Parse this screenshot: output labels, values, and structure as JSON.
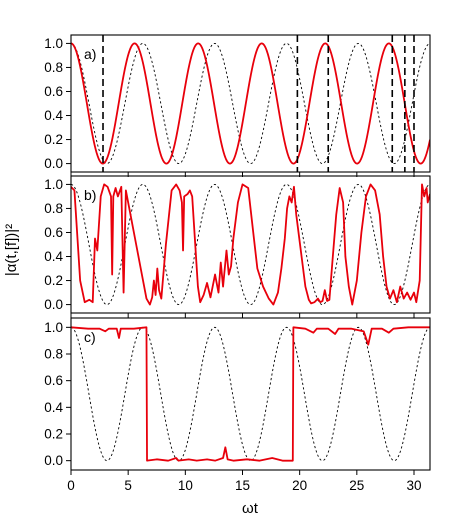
{
  "chart_data": {
    "type": "line",
    "xlabel": "ωt",
    "ylabel": "|α(t,[f])|²",
    "xlim": [
      0,
      31.4
    ],
    "ylim": [
      -0.07,
      1.07
    ],
    "x_ticks": [
      "0",
      "5",
      "10",
      "15",
      "20",
      "25",
      "30"
    ],
    "y_ticks": [
      "0.0",
      "0.2",
      "0.4",
      "0.6",
      "0.8",
      "1.0"
    ],
    "grid": false,
    "colors": {
      "red_series": "#e8000b",
      "dotted_series": "#000000"
    },
    "panels": [
      {
        "label": "a)",
        "series": [
          {
            "style": "dotted-black",
            "function": "cos^2(ωt/2)",
            "frequency": 1.0
          },
          {
            "style": "solid-red",
            "function": "cos^2(1.13·ωt/2)",
            "frequency": 1.13
          }
        ],
        "vertical_dashed_lines_x": [
          2.8,
          19.8,
          22.5,
          28.1,
          29.2,
          30.0
        ]
      },
      {
        "label": "b)",
        "series": [
          {
            "style": "dotted-black",
            "function": "cos^2(ωt/2)"
          },
          {
            "style": "solid-red",
            "points": [
              [
                0,
                0.98
              ],
              [
                0.3,
                0.95
              ],
              [
                0.8,
                0.2
              ],
              [
                1.2,
                0.02
              ],
              [
                1.6,
                0.04
              ],
              [
                1.9,
                0.02
              ],
              [
                2.1,
                0.55
              ],
              [
                2.3,
                0.45
              ],
              [
                2.6,
                0.9
              ],
              [
                2.9,
                1.0
              ],
              [
                3.2,
                0.98
              ],
              [
                3.5,
                0.9
              ],
              [
                3.6,
                0.25
              ],
              [
                3.7,
                0.9
              ],
              [
                3.9,
                0.97
              ],
              [
                4.1,
                0.9
              ],
              [
                4.4,
                0.98
              ],
              [
                4.6,
                0.1
              ],
              [
                4.8,
                0.95
              ],
              [
                5.2,
                0.75
              ],
              [
                5.7,
                0.5
              ],
              [
                6.2,
                0.25
              ],
              [
                6.6,
                0.05
              ],
              [
                6.9,
                0.0
              ],
              [
                7.1,
                0.06
              ],
              [
                7.25,
                0.2
              ],
              [
                7.4,
                0.08
              ],
              [
                7.55,
                0.3
              ],
              [
                7.7,
                0.12
              ],
              [
                7.9,
                0.05
              ],
              [
                8.3,
                0.5
              ],
              [
                8.8,
                0.95
              ],
              [
                9.2,
                1.0
              ],
              [
                9.5,
                0.95
              ],
              [
                9.7,
                0.85
              ],
              [
                9.8,
                0.45
              ],
              [
                9.9,
                0.9
              ],
              [
                10.2,
                0.92
              ],
              [
                10.4,
                0.95
              ],
              [
                10.6,
                0.9
              ],
              [
                10.9,
                0.45
              ],
              [
                11.1,
                0.15
              ],
              [
                11.3,
                0.02
              ],
              [
                11.6,
                0.08
              ],
              [
                11.9,
                0.18
              ],
              [
                12.2,
                0.06
              ],
              [
                12.6,
                0.25
              ],
              [
                12.9,
                0.1
              ],
              [
                13.1,
                0.35
              ],
              [
                13.3,
                0.15
              ],
              [
                13.6,
                0.45
              ],
              [
                13.8,
                0.25
              ],
              [
                14.0,
                0.32
              ],
              [
                14.2,
                0.55
              ],
              [
                14.6,
                0.85
              ],
              [
                15.0,
                1.0
              ],
              [
                15.5,
                0.97
              ],
              [
                16.0,
                0.55
              ],
              [
                16.3,
                0.3
              ],
              [
                16.8,
                0.15
              ],
              [
                17.3,
                0.05
              ],
              [
                17.7,
                0.0
              ],
              [
                18.1,
                0.1
              ],
              [
                18.4,
                0.3
              ],
              [
                18.7,
                0.55
              ],
              [
                18.9,
                0.8
              ],
              [
                19.1,
                0.9
              ],
              [
                19.3,
                0.85
              ],
              [
                19.5,
                0.98
              ],
              [
                19.7,
                0.75
              ],
              [
                20.1,
                0.45
              ],
              [
                20.5,
                0.15
              ],
              [
                20.8,
                0.04
              ],
              [
                21.0,
                0.01
              ],
              [
                21.3,
                0.02
              ],
              [
                21.6,
                0.05
              ],
              [
                21.8,
                0.02
              ],
              [
                22.0,
                0.03
              ],
              [
                22.2,
                0.12
              ],
              [
                22.4,
                0.03
              ],
              [
                22.6,
                0.04
              ],
              [
                22.9,
                0.4
              ],
              [
                23.2,
                0.75
              ],
              [
                23.5,
                0.97
              ],
              [
                23.8,
                0.85
              ],
              [
                24.0,
                0.4
              ],
              [
                24.3,
                0.15
              ],
              [
                24.6,
                0.0
              ],
              [
                25.0,
                0.2
              ],
              [
                25.4,
                0.6
              ],
              [
                25.8,
                0.9
              ],
              [
                26.2,
                1.0
              ],
              [
                26.6,
                0.95
              ],
              [
                27.0,
                0.75
              ],
              [
                27.3,
                0.4
              ],
              [
                27.6,
                0.15
              ],
              [
                27.9,
                0.05
              ],
              [
                28.2,
                0.12
              ],
              [
                28.5,
                0.02
              ],
              [
                28.8,
                0.15
              ],
              [
                29.1,
                0.05
              ],
              [
                29.4,
                0.1
              ],
              [
                29.7,
                0.04
              ],
              [
                30.0,
                0.1
              ],
              [
                30.2,
                0.02
              ],
              [
                30.5,
                0.2
              ],
              [
                30.7,
                1.0
              ],
              [
                30.9,
                0.9
              ],
              [
                31.1,
                0.97
              ],
              [
                31.2,
                0.85
              ],
              [
                31.4,
                0.92
              ]
            ]
          }
        ]
      },
      {
        "label": "c)",
        "series": [
          {
            "style": "dotted-black",
            "function": "cos^2(ωt/2)"
          },
          {
            "style": "solid-red",
            "points": [
              [
                0,
                1.0
              ],
              [
                1.5,
                0.99
              ],
              [
                2.5,
                0.99
              ],
              [
                3.0,
                0.97
              ],
              [
                3.3,
                0.99
              ],
              [
                4.0,
                0.99
              ],
              [
                4.2,
                0.92
              ],
              [
                4.35,
                0.99
              ],
              [
                5.5,
                0.99
              ],
              [
                6.6,
                1.0
              ],
              [
                6.65,
                0.0
              ],
              [
                7.5,
                0.01
              ],
              [
                8.5,
                0.0
              ],
              [
                9.2,
                0.02
              ],
              [
                9.4,
                0.0
              ],
              [
                10.3,
                0.01
              ],
              [
                11.0,
                0.0
              ],
              [
                11.9,
                0.01
              ],
              [
                12.6,
                0.0
              ],
              [
                13.3,
                0.02
              ],
              [
                13.5,
                0.1
              ],
              [
                13.7,
                0.01
              ],
              [
                14.2,
                0.0
              ],
              [
                15.4,
                0.01
              ],
              [
                16.5,
                0.0
              ],
              [
                17.6,
                0.02
              ],
              [
                18.5,
                0.0
              ],
              [
                19.4,
                0.0
              ],
              [
                19.45,
                1.0
              ],
              [
                20.5,
                0.99
              ],
              [
                21.2,
                0.96
              ],
              [
                21.5,
                0.99
              ],
              [
                22.5,
                0.99
              ],
              [
                23.1,
                0.95
              ],
              [
                23.4,
                0.99
              ],
              [
                24.5,
                0.99
              ],
              [
                25.6,
                0.97
              ],
              [
                26.0,
                0.87
              ],
              [
                26.3,
                0.99
              ],
              [
                27.2,
                0.99
              ],
              [
                27.8,
                0.96
              ],
              [
                28.2,
                0.99
              ],
              [
                29.5,
                1.0
              ],
              [
                31.4,
                1.0
              ]
            ]
          }
        ]
      }
    ]
  }
}
